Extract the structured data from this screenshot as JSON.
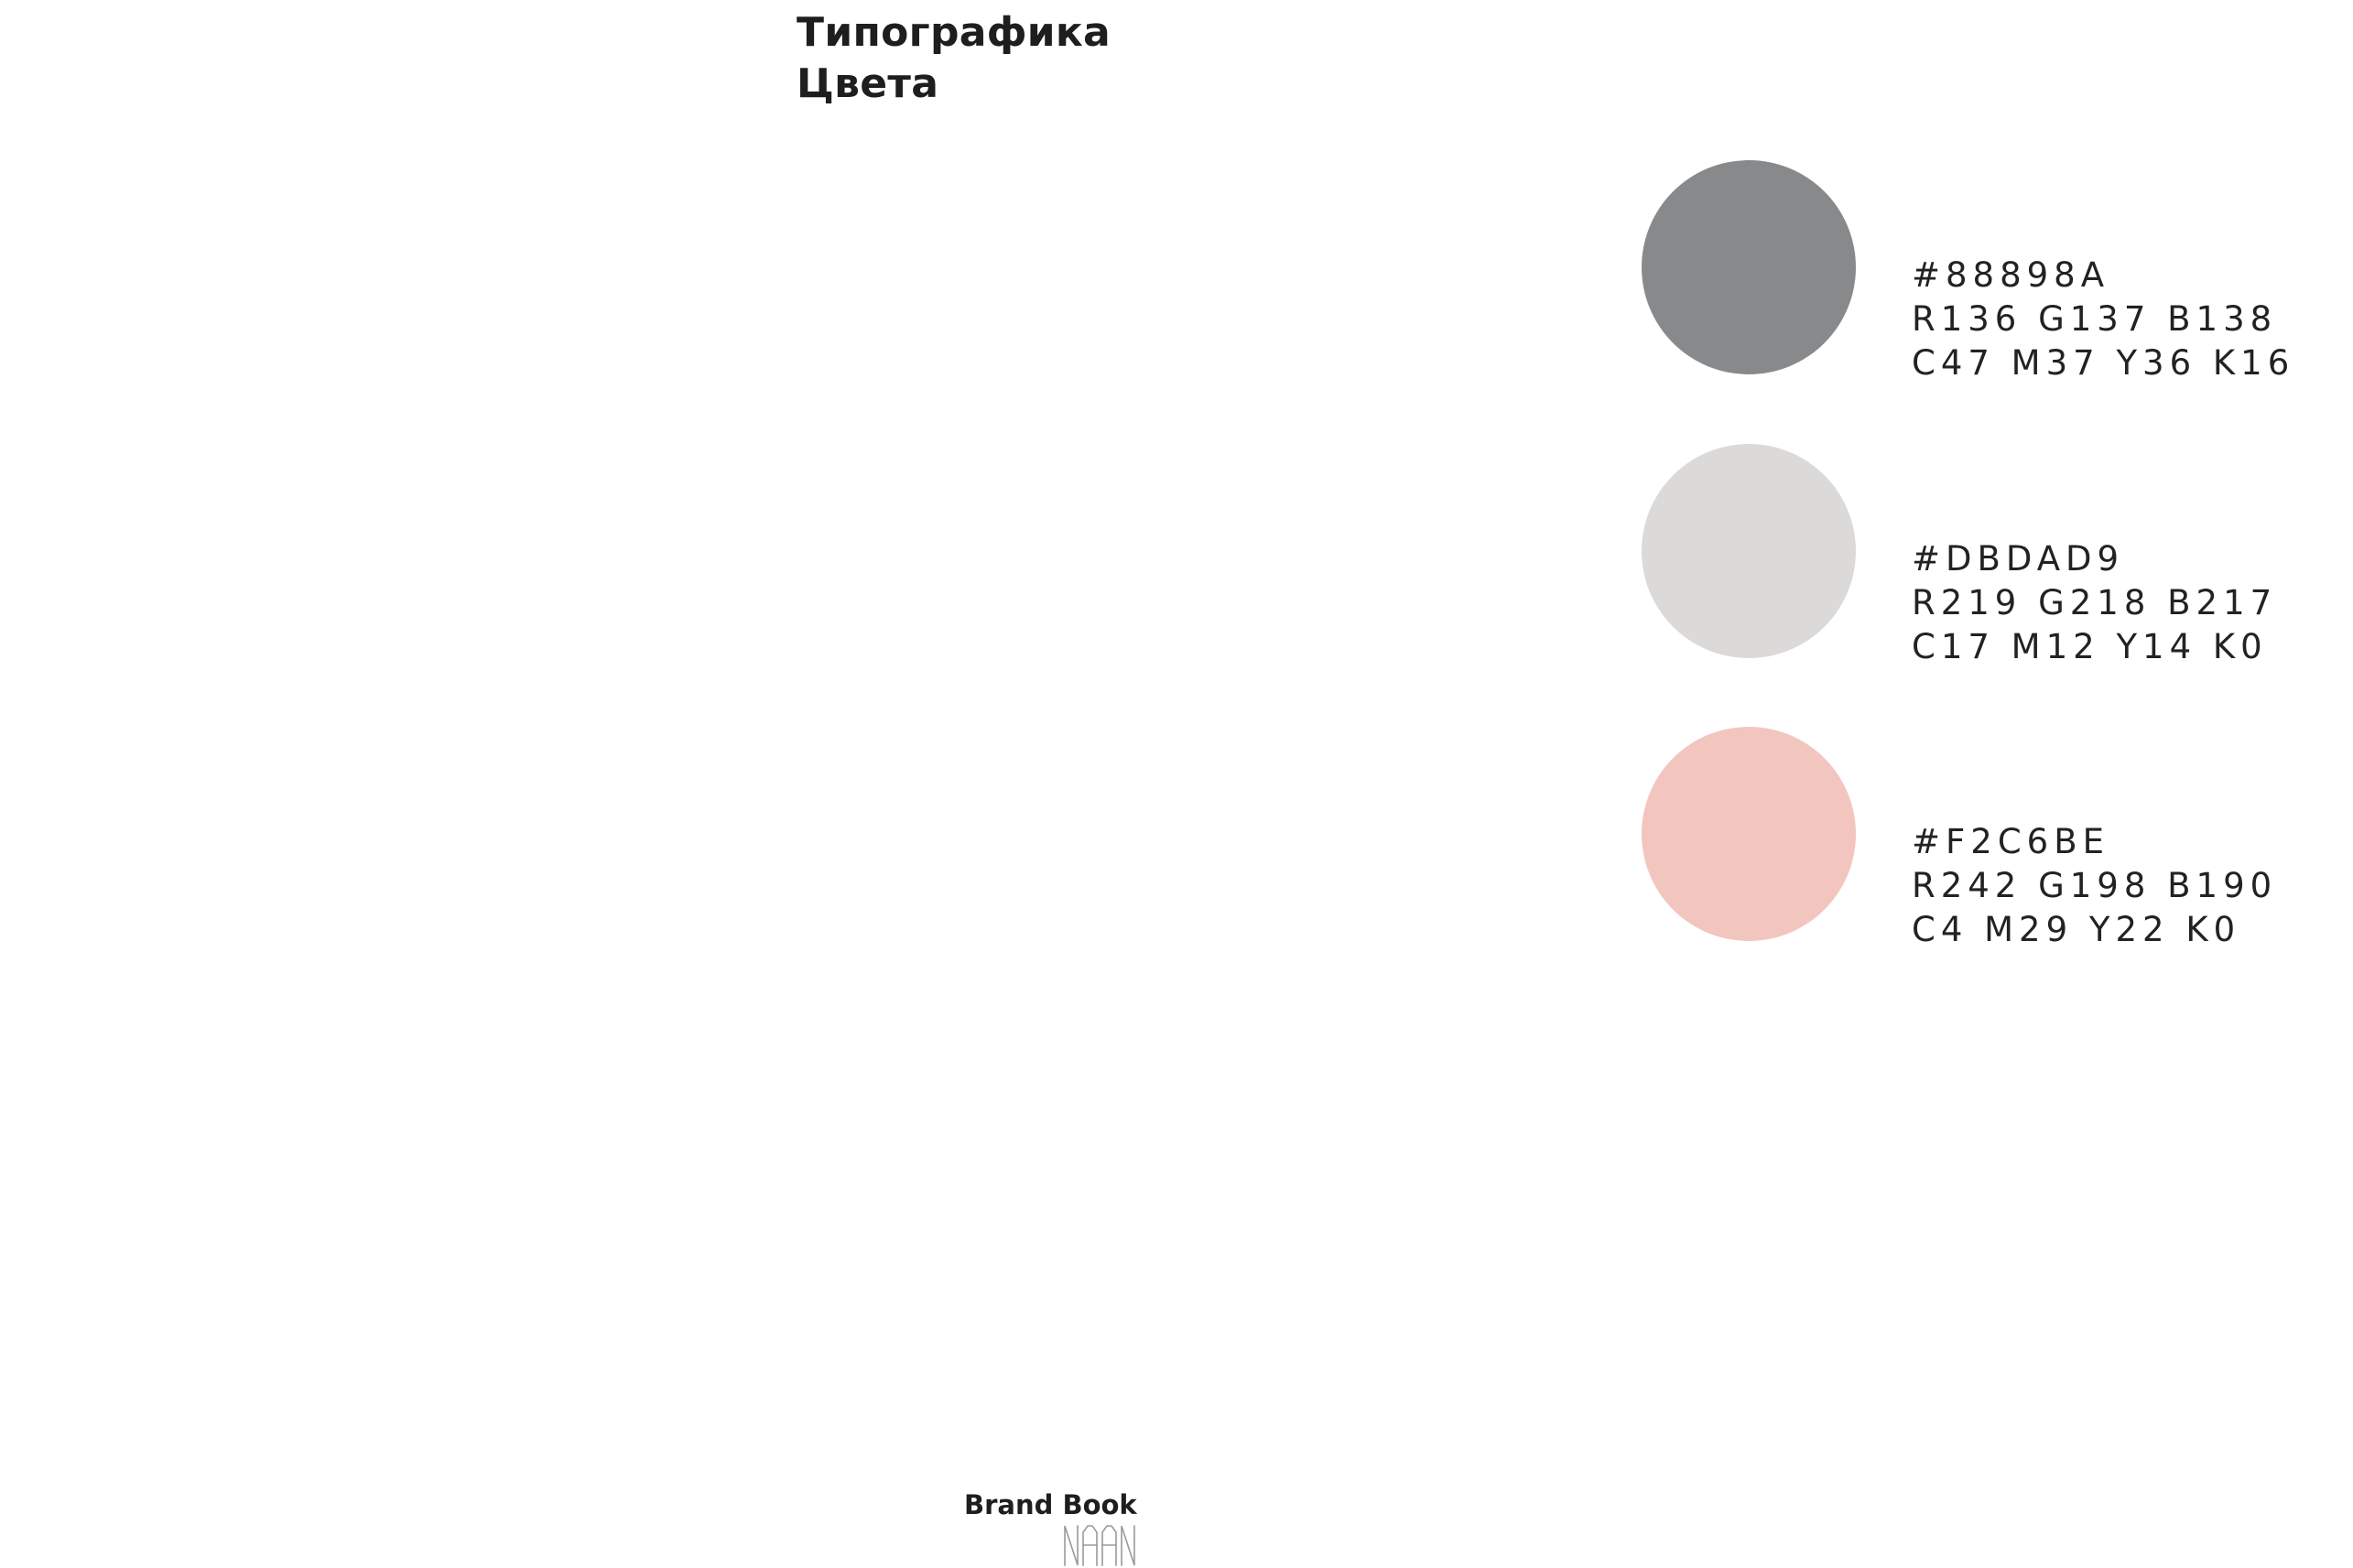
{
  "header": {
    "line1": "Типографика",
    "line2": "Цвета"
  },
  "swatches": [
    {
      "color": "#88898A",
      "hex": "#88898A",
      "rgb": "R136  G137  B138",
      "cmyk": "C47  M37  Y36  K16"
    },
    {
      "color": "#DBDAD9",
      "hex": "#DBDAD9",
      "rgb": "R219  G218  B217",
      "cmyk": "C17  M12  Y14  K0"
    },
    {
      "color": "#F2C6BE",
      "hex": "#F2C6BE",
      "rgb": "R242  G198  B190",
      "cmyk": "C4  M29  Y22  K0"
    }
  ],
  "footer": {
    "title": "Brand Book",
    "logo": "NAAN"
  }
}
